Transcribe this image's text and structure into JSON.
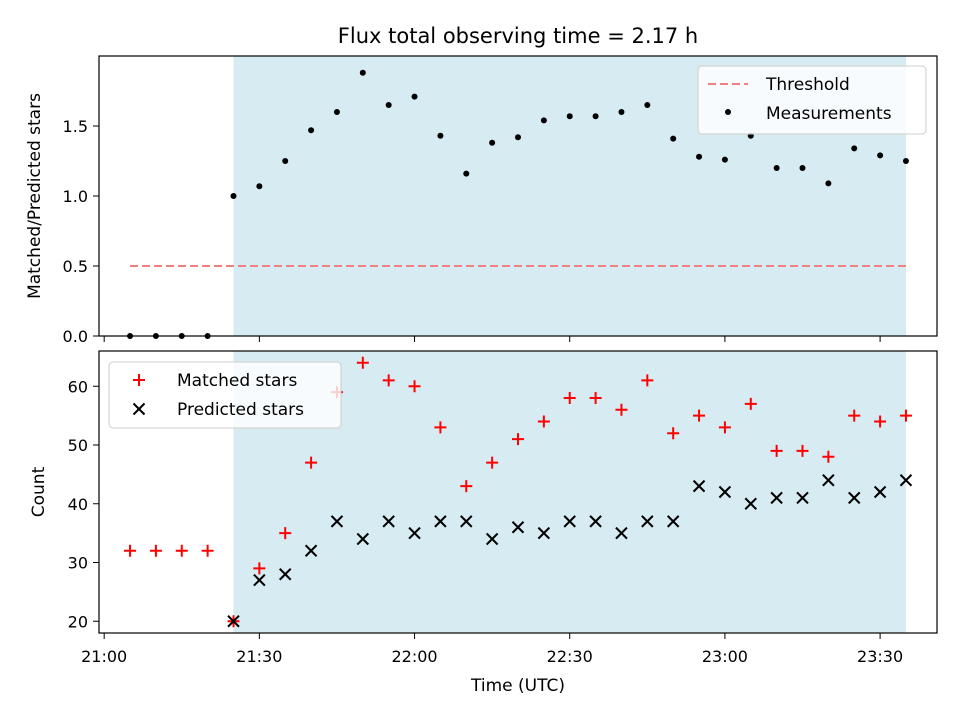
{
  "title": "Flux total observing time = 2.17 h",
  "colors": {
    "threshold": "#f08080",
    "measurement": "#000000",
    "matched": "#ff0000",
    "predicted": "#000000",
    "shade": "#add8e6"
  },
  "chart_data": [
    {
      "type": "scatter",
      "ylabel": "Matched/Predicted stars",
      "ylim": [
        0,
        2.0
      ],
      "yticks": [
        0.0,
        0.5,
        1.0,
        1.5
      ],
      "ytick_labels": [
        "0.0",
        "0.5",
        "1.0",
        "1.5"
      ],
      "shaded_x_range": [
        "21:25",
        "23:35"
      ],
      "legend_placement": "upper right",
      "threshold": {
        "name": "Threshold",
        "value": 0.5,
        "x_range": [
          "21:05",
          "23:35"
        ]
      },
      "series": [
        {
          "name": "Measurements",
          "x": [
            "21:05",
            "21:10",
            "21:15",
            "21:20",
            "21:25",
            "21:30",
            "21:35",
            "21:40",
            "21:45",
            "21:50",
            "21:55",
            "22:00",
            "22:05",
            "22:10",
            "22:15",
            "22:20",
            "22:25",
            "22:30",
            "22:35",
            "22:40",
            "22:45",
            "22:50",
            "22:55",
            "23:00",
            "23:05",
            "23:10",
            "23:15",
            "23:20",
            "23:25",
            "23:30",
            "23:35"
          ],
          "values": [
            0,
            0,
            0,
            0,
            1.0,
            1.07,
            1.25,
            1.47,
            1.6,
            1.88,
            1.65,
            1.71,
            1.43,
            1.16,
            1.38,
            1.42,
            1.54,
            1.57,
            1.57,
            1.6,
            1.65,
            1.41,
            1.28,
            1.26,
            1.43,
            1.2,
            1.2,
            1.09,
            1.34,
            1.29,
            1.25
          ]
        }
      ]
    },
    {
      "type": "scatter",
      "ylabel": "Count",
      "xlabel": "Time (UTC)",
      "ylim": [
        18,
        66
      ],
      "yticks": [
        20,
        30,
        40,
        50,
        60
      ],
      "ytick_labels": [
        "20",
        "30",
        "40",
        "50",
        "60"
      ],
      "xticks": [
        "21:00",
        "21:30",
        "22:00",
        "22:30",
        "23:00",
        "23:30"
      ],
      "xlim": [
        "20:59",
        "23:41"
      ],
      "shaded_x_range": [
        "21:25",
        "23:35"
      ],
      "legend_placement": "upper left",
      "series": [
        {
          "name": "Matched stars",
          "x": [
            "21:05",
            "21:10",
            "21:15",
            "21:20",
            "21:25",
            "21:30",
            "21:35",
            "21:40",
            "21:45",
            "21:50",
            "21:55",
            "22:00",
            "22:05",
            "22:10",
            "22:15",
            "22:20",
            "22:25",
            "22:30",
            "22:35",
            "22:40",
            "22:45",
            "22:50",
            "22:55",
            "23:00",
            "23:05",
            "23:10",
            "23:15",
            "23:20",
            "23:25",
            "23:30",
            "23:35"
          ],
          "values": [
            32,
            32,
            32,
            32,
            20,
            29,
            35,
            47,
            59,
            64,
            61,
            60,
            53,
            43,
            47,
            51,
            54,
            58,
            58,
            56,
            61,
            52,
            55,
            53,
            57,
            49,
            49,
            48,
            55,
            54,
            55
          ]
        },
        {
          "name": "Predicted stars",
          "x": [
            "21:25",
            "21:30",
            "21:35",
            "21:40",
            "21:45",
            "21:50",
            "21:55",
            "22:00",
            "22:05",
            "22:10",
            "22:15",
            "22:20",
            "22:25",
            "22:30",
            "22:35",
            "22:40",
            "22:45",
            "22:50",
            "22:55",
            "23:00",
            "23:05",
            "23:10",
            "23:15",
            "23:20",
            "23:25",
            "23:30",
            "23:35"
          ],
          "values": [
            20,
            27,
            28,
            32,
            37,
            34,
            37,
            35,
            37,
            37,
            34,
            36,
            35,
            37,
            37,
            35,
            37,
            37,
            43,
            42,
            40,
            41,
            41,
            44,
            41,
            42,
            44
          ]
        }
      ]
    }
  ]
}
